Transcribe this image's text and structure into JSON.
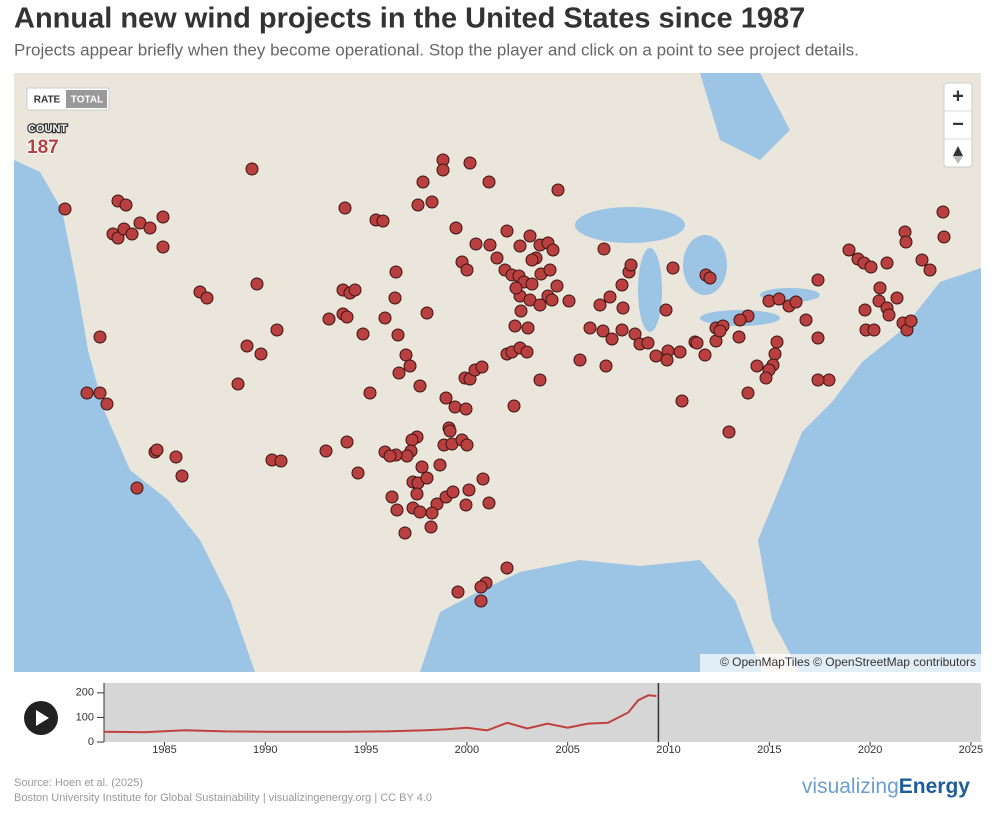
{
  "header": {
    "title": "Annual new wind projects in the United States since 1987",
    "subtitle": "Projects appear briefly when they become operational. Stop the player and click on a point to see project details."
  },
  "map": {
    "toggle_options": [
      "RATE",
      "TOTAL"
    ],
    "count_label": "COUNT",
    "count": 187,
    "zoom_in": "+",
    "zoom_out": "−",
    "attribution": "© OpenMapTiles © OpenStreetMap contributors"
  },
  "chart_data": {
    "type": "line",
    "x": [
      1982,
      1984,
      1986,
      1988,
      1990,
      1992,
      1994,
      1996,
      1998,
      1999,
      2000,
      2001,
      2002,
      2003,
      2004,
      2005,
      2006,
      2007,
      2008,
      2008.5,
      2009,
      2009.4
    ],
    "values": [
      42,
      40,
      48,
      43,
      42,
      42,
      42,
      43,
      48,
      52,
      58,
      47,
      78,
      55,
      75,
      58,
      75,
      78,
      120,
      170,
      190,
      187
    ],
    "color": "#c0403c",
    "xlim": [
      1982,
      2025.5
    ],
    "ylim": [
      0,
      240
    ],
    "xticks": [
      1985,
      1990,
      1995,
      2000,
      2005,
      2010,
      2015,
      2020,
      2025
    ],
    "yticks": [
      0,
      100,
      200
    ],
    "cursor_x": 2009.5
  },
  "footer": {
    "source": "Source: Hoen et al. (2025)",
    "credit": "Boston University Institute for Global Sustainability | visualizingenergy.org | CC BY 4.0",
    "logo_light": "visualizing",
    "logo_bold": "Energy"
  }
}
